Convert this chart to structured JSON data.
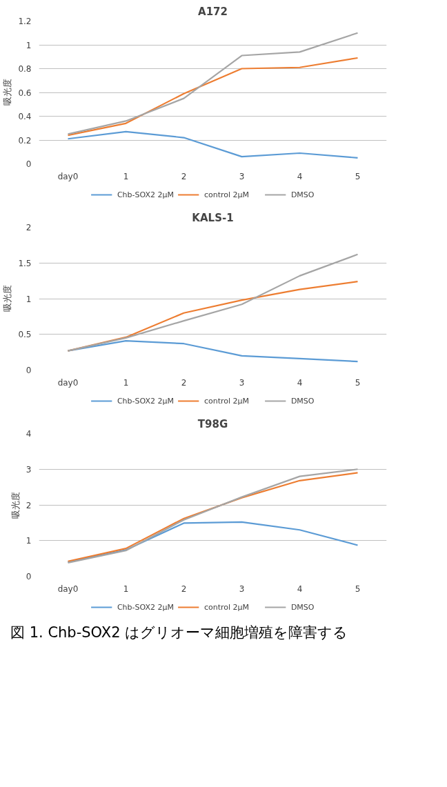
{
  "chart_data": [
    {
      "type": "line",
      "title": "A172",
      "ylabel": "吸光度",
      "categories": [
        "day0",
        "1",
        "2",
        "3",
        "4",
        "5"
      ],
      "ylim": [
        0,
        1.2
      ],
      "yticks": [
        0,
        0.2,
        0.4,
        0.6,
        0.8,
        1,
        1.2
      ],
      "grid": "y",
      "legend": "bottom",
      "series": [
        {
          "name": "Chb-SOX2 2µM",
          "color": "#5b9bd5",
          "values": [
            0.21,
            0.27,
            0.22,
            0.06,
            0.09,
            0.05
          ]
        },
        {
          "name": "control 2µM",
          "color": "#ed7d31",
          "values": [
            0.24,
            0.34,
            0.59,
            0.8,
            0.81,
            0.89
          ]
        },
        {
          "name": "DMSO",
          "color": "#a5a5a5",
          "values": [
            0.25,
            0.36,
            0.55,
            0.91,
            0.94,
            1.1
          ]
        }
      ]
    },
    {
      "type": "line",
      "title": "KALS-1",
      "ylabel": "吸光度",
      "categories": [
        "day0",
        "1",
        "2",
        "3",
        "4",
        "5"
      ],
      "ylim": [
        0,
        2
      ],
      "yticks": [
        0,
        0.5,
        1,
        1.5,
        2
      ],
      "grid": "y",
      "legend": "bottom",
      "series": [
        {
          "name": "Chb-SOX2 2µM",
          "color": "#5b9bd5",
          "values": [
            0.27,
            0.41,
            0.37,
            0.2,
            0.16,
            0.12
          ]
        },
        {
          "name": "control 2µM",
          "color": "#ed7d31",
          "values": [
            0.27,
            0.46,
            0.8,
            0.98,
            1.13,
            1.24
          ]
        },
        {
          "name": "DMSO",
          "color": "#a5a5a5",
          "values": [
            0.27,
            0.45,
            0.69,
            0.92,
            1.32,
            1.62
          ]
        }
      ]
    },
    {
      "type": "line",
      "title": "T98G",
      "ylabel": "吸光度",
      "categories": [
        "day0",
        "1",
        "2",
        "3",
        "4",
        "5"
      ],
      "ylim": [
        0,
        4
      ],
      "yticks": [
        0,
        1,
        2,
        3,
        4
      ],
      "grid": "y",
      "legend": "bottom",
      "annotations": [
        "図 1. Chb-SOX2 はグリオーマ細胞増殖を障害する"
      ],
      "series": [
        {
          "name": "Chb-SOX2 2µM",
          "color": "#5b9bd5",
          "values": [
            0.4,
            0.74,
            1.49,
            1.52,
            1.3,
            0.87
          ]
        },
        {
          "name": "control 2µM",
          "color": "#ed7d31",
          "values": [
            0.42,
            0.78,
            1.62,
            2.2,
            2.68,
            2.9
          ]
        },
        {
          "name": "DMSO",
          "color": "#a5a5a5",
          "values": [
            0.38,
            0.72,
            1.58,
            2.22,
            2.8,
            3.0
          ]
        }
      ]
    }
  ]
}
